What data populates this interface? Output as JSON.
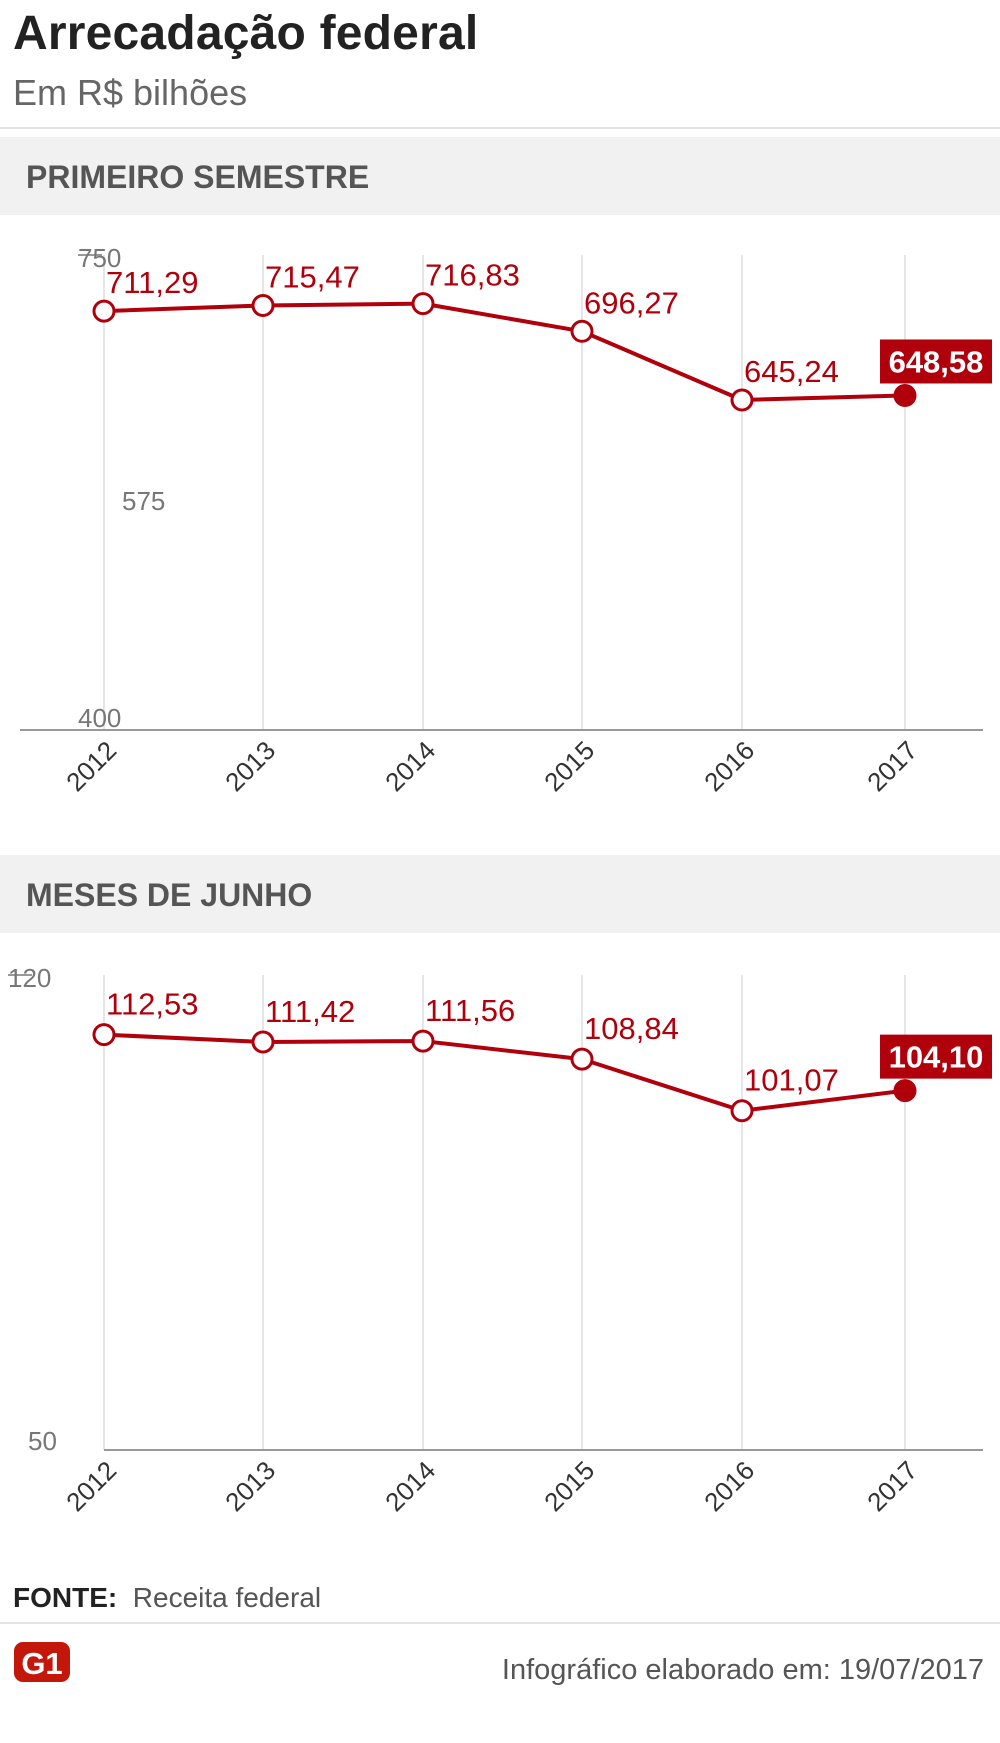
{
  "header": {
    "title": "Arrecadação federal",
    "subtitle": "Em R$ bilhões"
  },
  "colors": {
    "line": "#b0000c",
    "grid": "#dddddd",
    "axis": "#999999",
    "tick": "#777777",
    "band": "#f1f1f1"
  },
  "chart_data": [
    {
      "type": "line",
      "title": "PRIMEIRO SEMESTRE",
      "x": [
        "2012",
        "2013",
        "2014",
        "2015",
        "2016",
        "2017"
      ],
      "series": [
        {
          "values": [
            711.29,
            715.47,
            716.83,
            696.27,
            645.24,
            648.58
          ]
        }
      ],
      "labels": [
        "711,29",
        "715,47",
        "716,83",
        "696,27",
        "645,24",
        "648,58"
      ],
      "ylim": [
        400,
        750
      ],
      "yticks": [
        "750",
        "575",
        "400"
      ],
      "grid": true,
      "highlight_last": true
    },
    {
      "type": "line",
      "title": "MESES DE JUNHO",
      "x": [
        "2012",
        "2013",
        "2014",
        "2015",
        "2016",
        "2017"
      ],
      "series": [
        {
          "values": [
            112.53,
            111.42,
            111.56,
            108.84,
            101.07,
            104.1
          ]
        }
      ],
      "labels": [
        "112,53",
        "111,42",
        "111,56",
        "108,84",
        "101,07",
        "104,10"
      ],
      "ylim": [
        50,
        120
      ],
      "yticks": [
        "120",
        "50"
      ],
      "grid": true,
      "highlight_last": true
    }
  ],
  "footer": {
    "source_label": "FONTE:",
    "source_value": "Receita federal",
    "logo_text": "G1",
    "credit": "Infográfico elaborado em: 19/07/2017"
  }
}
